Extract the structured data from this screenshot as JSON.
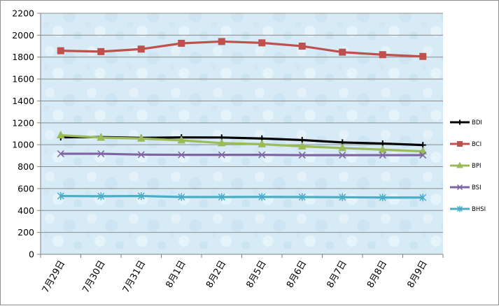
{
  "chart_data": {
    "type": "line",
    "categories": [
      "7月29日",
      "7月30日",
      "7月31日",
      "8月1日",
      "8月2日",
      "8月5日",
      "8月6日",
      "8月7日",
      "8月8日",
      "8月9日"
    ],
    "ylim": [
      0,
      2200
    ],
    "yticks": [
      0,
      200,
      400,
      600,
      800,
      1000,
      1200,
      1400,
      1600,
      1800,
      2000,
      2200
    ],
    "grid": true,
    "legend_position": "right",
    "series": [
      {
        "name": "BDI",
        "color": "#000000",
        "marker": "plus",
        "values": [
          1068,
          1070,
          1063,
          1067,
          1066,
          1057,
          1043,
          1021,
          1011,
          997
        ]
      },
      {
        "name": "BCI",
        "color": "#c0504d",
        "marker": "square",
        "values": [
          1858,
          1850,
          1873,
          1926,
          1942,
          1930,
          1900,
          1845,
          1822,
          1806
        ]
      },
      {
        "name": "BPI",
        "color": "#9bbb59",
        "marker": "triangle",
        "values": [
          1087,
          1065,
          1057,
          1040,
          1015,
          1005,
          985,
          970,
          955,
          940
        ]
      },
      {
        "name": "BSI",
        "color": "#8064a2",
        "marker": "x",
        "values": [
          918,
          918,
          910,
          908,
          908,
          908,
          905,
          905,
          905,
          905
        ]
      },
      {
        "name": "BHSI",
        "color": "#4bacc6",
        "marker": "star",
        "values": [
          532,
          530,
          532,
          523,
          523,
          524,
          523,
          521,
          518,
          518
        ]
      }
    ]
  }
}
